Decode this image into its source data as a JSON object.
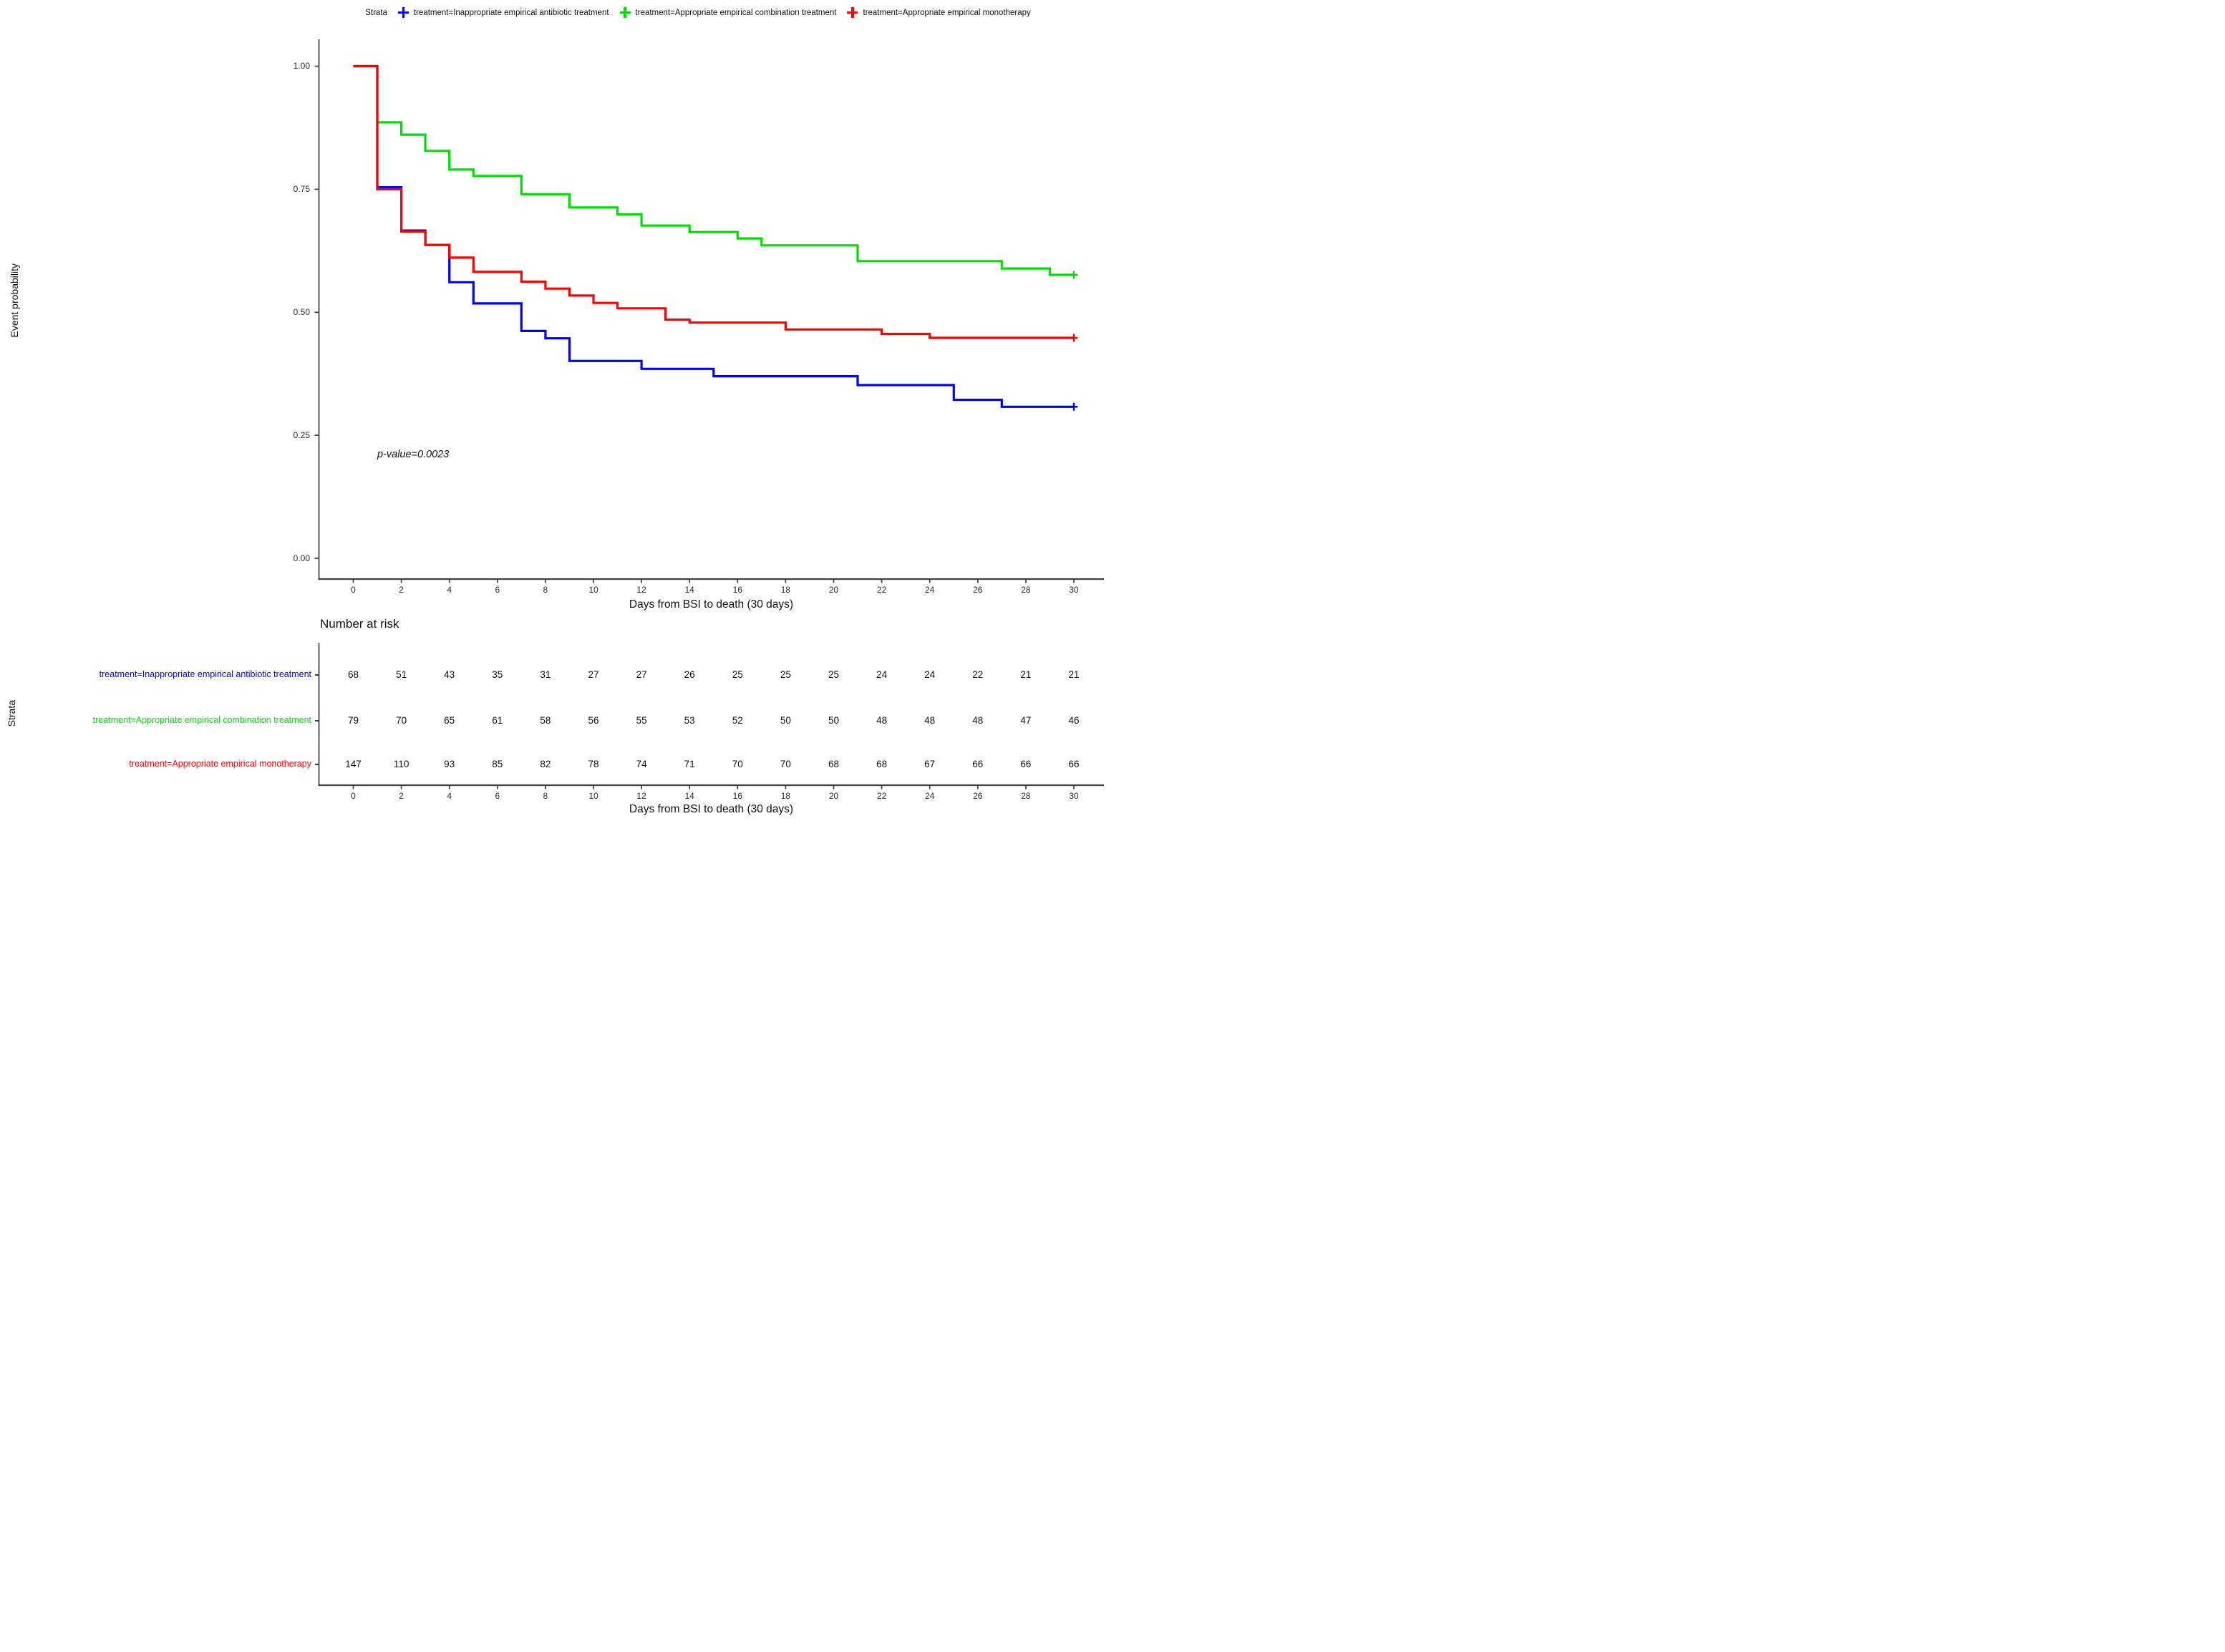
{
  "legend": {
    "title": "Strata",
    "items": [
      {
        "label": "treatment=Inappropriate empirical antibiotic treatment",
        "color": "#0000FF"
      },
      {
        "label": "treatment=Appropriate empirical combination treatment",
        "color": "#00E000"
      },
      {
        "label": "treatment=Appropriate empirical monotherapy",
        "color": "#FF0000"
      }
    ]
  },
  "chart_data": {
    "type": "line",
    "subtype": "kaplan-meier-step",
    "title": "",
    "xlabel": "Days from BSI to death (30 days)",
    "ylabel": "Event probability",
    "annotation": "p-value=0.0023",
    "xlim": [
      0,
      30
    ],
    "ylim": [
      0.0,
      1.0
    ],
    "grid": false,
    "legend_position": "top",
    "x_ticks": [
      0,
      2,
      4,
      6,
      8,
      10,
      12,
      14,
      16,
      18,
      20,
      22,
      24,
      26,
      28,
      30
    ],
    "y_ticks": [
      {
        "value": 1.0,
        "label": "1.00"
      },
      {
        "value": 0.75,
        "label": "0.75"
      },
      {
        "value": 0.5,
        "label": "0.50"
      },
      {
        "value": 0.25,
        "label": "0.25"
      },
      {
        "value": 0.0,
        "label": "0.00"
      }
    ],
    "series": [
      {
        "name": "treatment=Inappropriate empirical antibiotic treatment",
        "color": "#0000FF",
        "censored_at_end": true,
        "steps": [
          [
            0,
            1.0
          ],
          [
            1,
            0.754
          ],
          [
            2,
            0.666
          ],
          [
            3,
            0.637
          ],
          [
            4,
            0.561
          ],
          [
            5,
            0.518
          ],
          [
            7,
            0.462
          ],
          [
            8,
            0.447
          ],
          [
            9,
            0.401
          ],
          [
            12,
            0.385
          ],
          [
            15,
            0.37
          ],
          [
            21,
            0.352
          ],
          [
            25,
            0.322
          ],
          [
            27,
            0.308
          ],
          [
            30,
            0.308
          ]
        ]
      },
      {
        "name": "treatment=Appropriate empirical combination treatment",
        "color": "#00E000",
        "censored_at_end": true,
        "steps": [
          [
            0,
            1.0
          ],
          [
            1,
            0.886
          ],
          [
            2,
            0.861
          ],
          [
            3,
            0.828
          ],
          [
            4,
            0.79
          ],
          [
            5,
            0.777
          ],
          [
            7,
            0.74
          ],
          [
            9,
            0.713
          ],
          [
            11,
            0.699
          ],
          [
            12,
            0.676
          ],
          [
            14,
            0.663
          ],
          [
            16,
            0.65
          ],
          [
            17,
            0.636
          ],
          [
            21,
            0.604
          ],
          [
            27,
            0.589
          ],
          [
            29,
            0.576
          ],
          [
            30,
            0.576
          ]
        ]
      },
      {
        "name": "treatment=Appropriate empirical monotherapy",
        "color": "#FF0000",
        "censored_at_end": true,
        "steps": [
          [
            0,
            1.0
          ],
          [
            1,
            0.75
          ],
          [
            2,
            0.664
          ],
          [
            3,
            0.637
          ],
          [
            4,
            0.611
          ],
          [
            5,
            0.582
          ],
          [
            7,
            0.562
          ],
          [
            8,
            0.548
          ],
          [
            9,
            0.534
          ],
          [
            10,
            0.519
          ],
          [
            11,
            0.508
          ],
          [
            13,
            0.485
          ],
          [
            14,
            0.479
          ],
          [
            18,
            0.465
          ],
          [
            22,
            0.456
          ],
          [
            24,
            0.448
          ],
          [
            30,
            0.448
          ]
        ]
      }
    ]
  },
  "risk_table": {
    "title": "Number at risk",
    "ylabel": "Strata",
    "xlabel": "Days from BSI to death (30 days)",
    "days": [
      0,
      2,
      4,
      6,
      8,
      10,
      12,
      14,
      16,
      18,
      20,
      22,
      24,
      26,
      28,
      30
    ],
    "rows": [
      {
        "label": "treatment=Inappropriate empirical antibiotic treatment",
        "color": "#0000FF",
        "values": [
          68,
          51,
          43,
          35,
          31,
          27,
          27,
          26,
          25,
          25,
          25,
          24,
          24,
          22,
          21,
          21
        ]
      },
      {
        "label": "treatment=Appropriate empirical combination treatment",
        "color": "#00E000",
        "values": [
          79,
          70,
          65,
          61,
          58,
          56,
          55,
          53,
          52,
          50,
          50,
          48,
          48,
          48,
          47,
          46
        ]
      },
      {
        "label": "treatment=Appropriate empirical monotherapy",
        "color": "#FF0000",
        "values": [
          147,
          110,
          93,
          85,
          82,
          78,
          74,
          71,
          70,
          70,
          68,
          68,
          67,
          66,
          66,
          66
        ]
      }
    ]
  },
  "style": {
    "axis_color": "#3f3f3f",
    "text_color": "#111111"
  }
}
